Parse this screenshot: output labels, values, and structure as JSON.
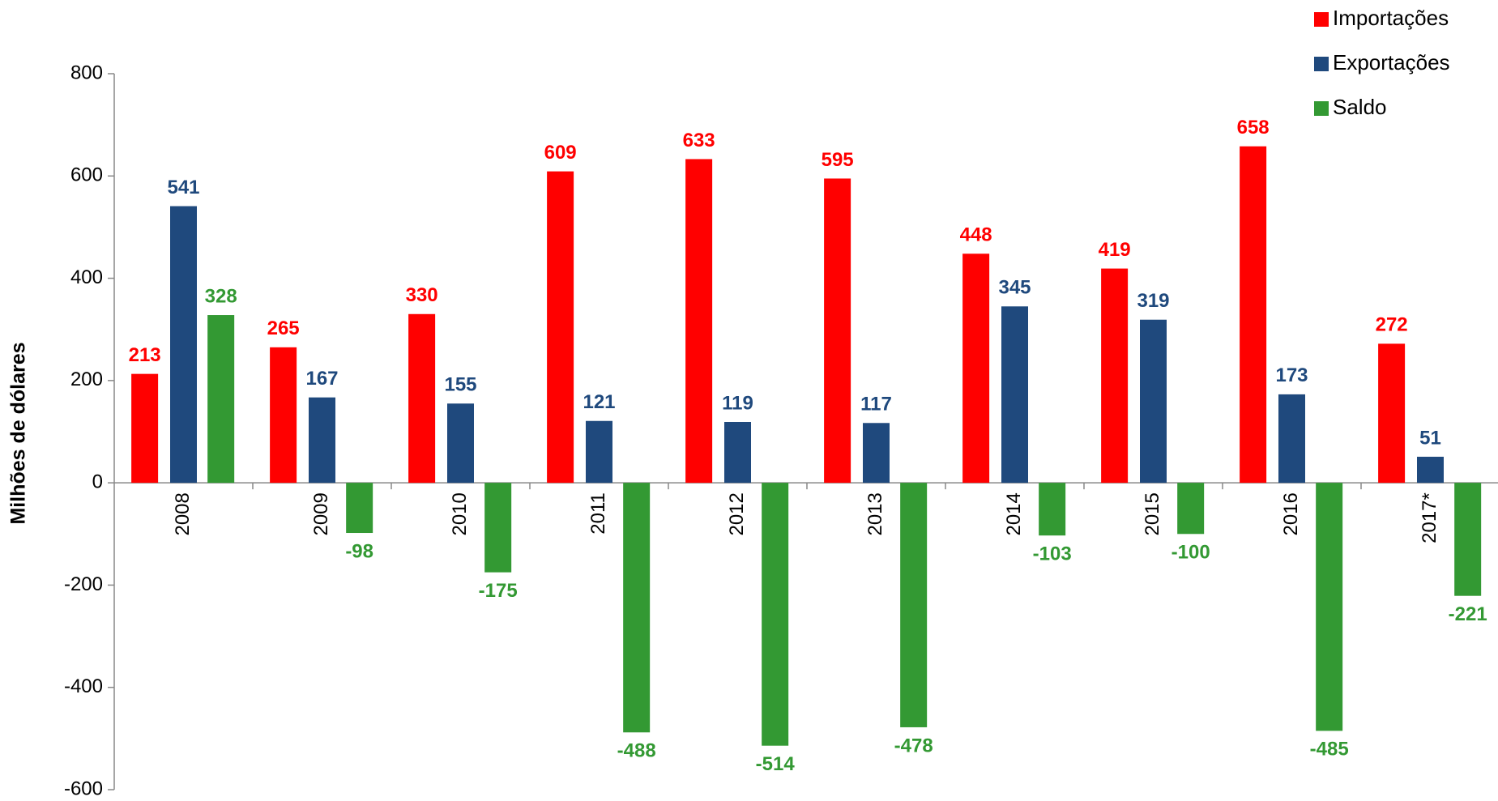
{
  "chart_data": {
    "type": "bar",
    "y_label": "Milhões de dólares",
    "categories": [
      "2008",
      "2009",
      "2010",
      "2011",
      "2012",
      "2013",
      "2014",
      "2015",
      "2016",
      "2017*"
    ],
    "series": [
      {
        "name": "Importações",
        "color": "#ff0000",
        "values": [
          213,
          265,
          330,
          609,
          633,
          595,
          448,
          419,
          658,
          272
        ]
      },
      {
        "name": "Exportações",
        "color": "#1f497d",
        "values": [
          541,
          167,
          155,
          121,
          119,
          117,
          345,
          319,
          173,
          51
        ]
      },
      {
        "name": "Saldo",
        "color": "#339933",
        "values": [
          328,
          -98,
          -175,
          -488,
          -514,
          -478,
          -103,
          -100,
          -485,
          -221
        ]
      }
    ],
    "ylim": [
      -600,
      800
    ],
    "yticks": [
      -600,
      -400,
      -200,
      0,
      200,
      400,
      600,
      800
    ],
    "grid": false,
    "legend": "upper right"
  }
}
